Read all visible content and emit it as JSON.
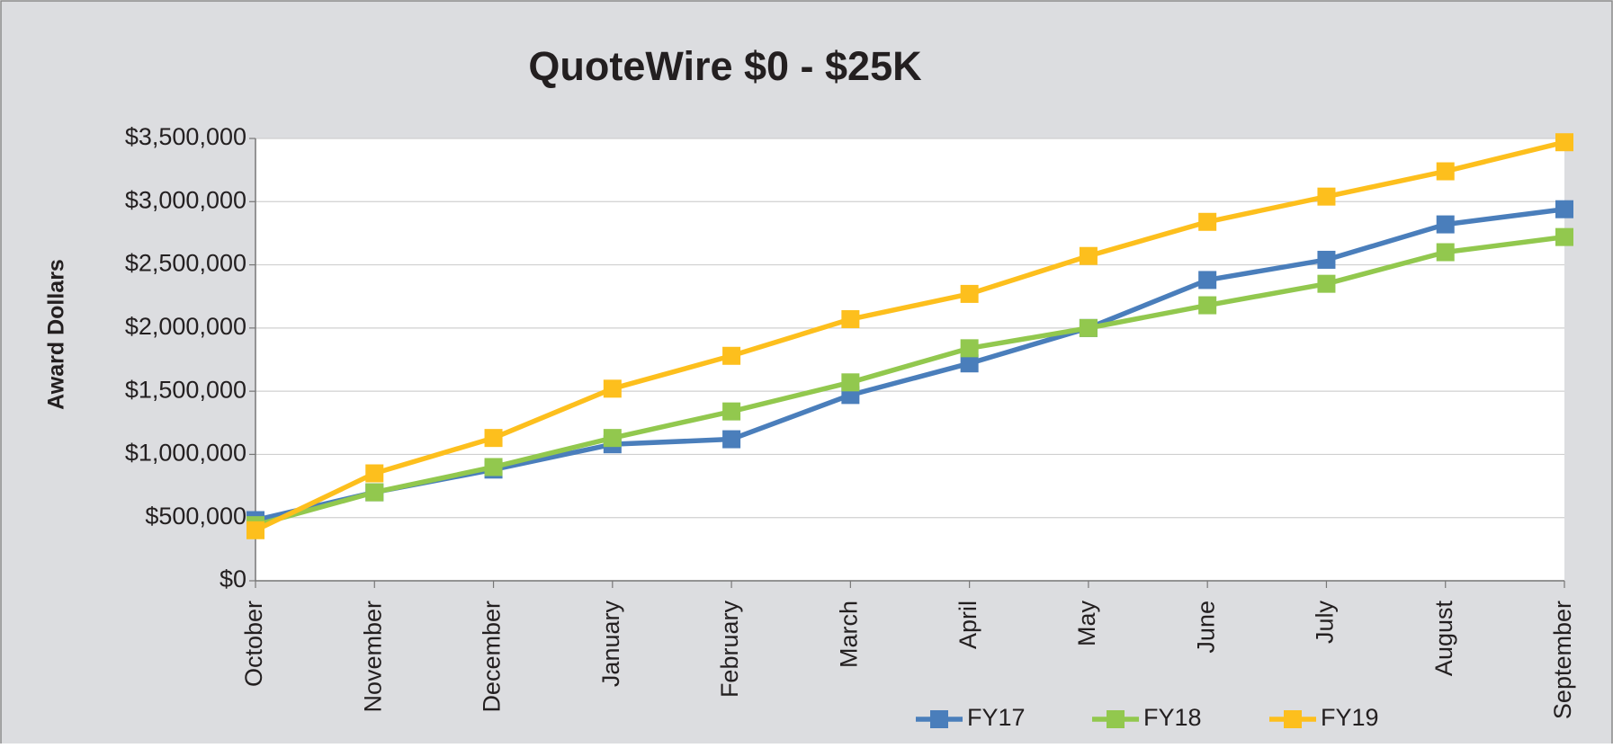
{
  "chart_data": {
    "type": "line",
    "title": "QuoteWire $0 - $25K",
    "ylabel": "Award Dollars",
    "categories": [
      "October",
      "November",
      "December",
      "January",
      "February",
      "March",
      "April",
      "May",
      "June",
      "July",
      "August",
      "September"
    ],
    "series": [
      {
        "name": "FY17",
        "color": "#4a7ebb",
        "values": [
          480000,
          700000,
          880000,
          1080000,
          1120000,
          1470000,
          1720000,
          2000000,
          2380000,
          2540000,
          2820000,
          2940000
        ]
      },
      {
        "name": "FY18",
        "color": "#92c84e",
        "values": [
          440000,
          700000,
          900000,
          1130000,
          1340000,
          1570000,
          1840000,
          2000000,
          2180000,
          2350000,
          2600000,
          2720000
        ]
      },
      {
        "name": "FY19",
        "color": "#fdbf1d",
        "values": [
          400000,
          850000,
          1130000,
          1520000,
          1780000,
          2070000,
          2270000,
          2570000,
          2840000,
          3040000,
          3240000,
          3470000
        ]
      }
    ],
    "ylim": [
      0,
      3500000
    ],
    "yticks": [
      {
        "value": 0,
        "label": "$0"
      },
      {
        "value": 500000,
        "label": "$500,000"
      },
      {
        "value": 1000000,
        "label": "$1,000,000"
      },
      {
        "value": 1500000,
        "label": "$1,500,000"
      },
      {
        "value": 2000000,
        "label": "$2,000,000"
      },
      {
        "value": 2500000,
        "label": "$2,500,000"
      },
      {
        "value": 3000000,
        "label": "$3,000,000"
      },
      {
        "value": 3500000,
        "label": "$3,500,000"
      }
    ],
    "grid": true,
    "legend": "bottom"
  }
}
